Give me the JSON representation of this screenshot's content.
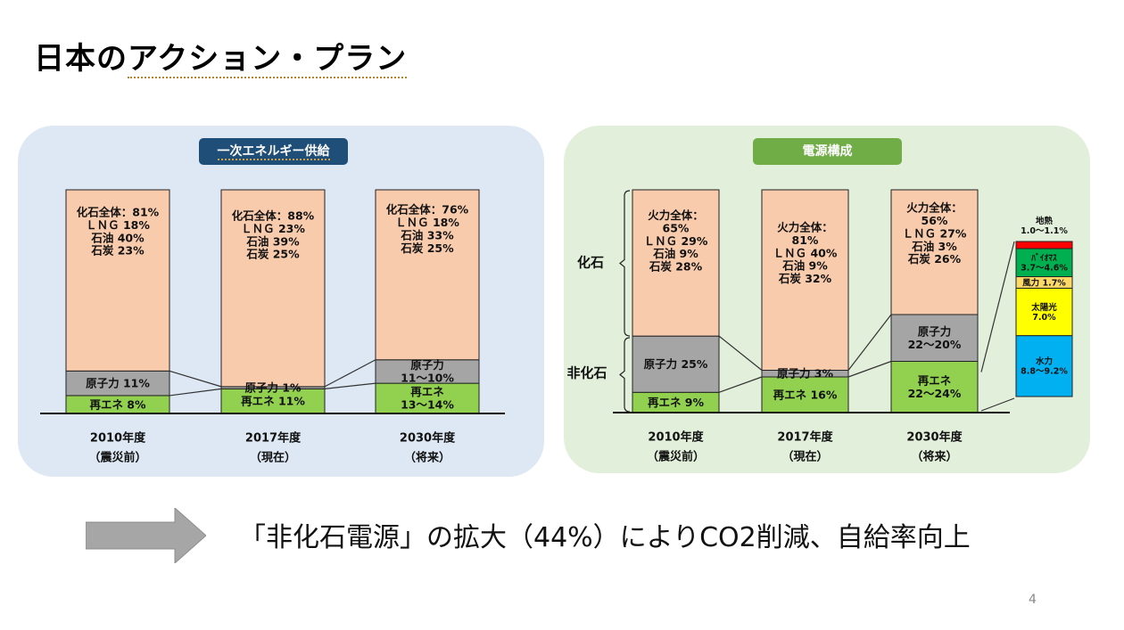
{
  "slide": {
    "title_prefix": "日本の",
    "title_underlined": "アクション・プラン",
    "page_number": "4",
    "bottom_message": "「非化石電源」の拡大（44%）によりCO2削減、自給率向上"
  },
  "colors": {
    "fossil": "#f8cbad",
    "nuclear": "#a5a5a5",
    "renewable": "#92d050",
    "geothermal": "#ff0000",
    "biomass": "#00b050",
    "wind": "#ffd966",
    "solar": "#ffff00",
    "hydro": "#00b0f0",
    "primary_badge": "#1f4e79",
    "power_badge": "#70ad47"
  },
  "chart_data": [
    {
      "type": "bar",
      "stacked": true,
      "title": "一次エネルギー供給",
      "categories": [
        "2010年度",
        "2017年度",
        "2030年度"
      ],
      "category_sublabels": [
        "（震災前）",
        "（現在）",
        "（将来）"
      ],
      "series": [
        {
          "name": "再エネ",
          "values": [
            8,
            11,
            13.5
          ],
          "labels": [
            "再エネ  8%",
            "再エネ  11%",
            "再エネ\n13～14%"
          ]
        },
        {
          "name": "原子力",
          "values": [
            11,
            1,
            10.5
          ],
          "labels": [
            "原子力  11%",
            "原子力  1%",
            "原子力\n11～10%"
          ]
        },
        {
          "name": "化石全体",
          "values": [
            81,
            88,
            76
          ],
          "labels": [
            "化石全体：81%\nＬＮＧ 18%\n石油  40%\n石炭  23%",
            "化石全体：88%\nＬＮＧ 23%\n石油  39%\n石炭  25%",
            "化石全体：76%\nＬＮＧ 18%\n石油  33%\n石炭  25%"
          ]
        }
      ],
      "ylim": [
        0,
        100
      ]
    },
    {
      "type": "bar",
      "stacked": true,
      "title": "電源構成",
      "categories": [
        "2010年度",
        "2017年度",
        "2030年度"
      ],
      "category_sublabels": [
        "（震災前）",
        "（現在）",
        "（将来）"
      ],
      "group_labels": [
        "化石",
        "非化石"
      ],
      "series": [
        {
          "name": "再エネ",
          "values": [
            9,
            16,
            23
          ],
          "labels": [
            "再エネ  9%",
            "再エネ  16%",
            "再エネ\n22～24%"
          ]
        },
        {
          "name": "原子力",
          "values": [
            25,
            3,
            21
          ],
          "labels": [
            "原子力  25%",
            "原子力  3%",
            "原子力\n22～20%"
          ]
        },
        {
          "name": "火力全体",
          "values": [
            65,
            81,
            56
          ],
          "labels": [
            "火力全体：\n65%\nＬＮＧ  29%\n石油   9%\n石炭  28%",
            "火力全体：\n81%\nＬＮＧ  40%\n石油   9%\n石炭  32%",
            "火力全体：\n56%\nＬＮＧ  27%\n石油    3%\n石炭  26%"
          ]
        }
      ],
      "renewable_breakdown_2030": [
        {
          "name": "水力",
          "range": "8.8～9.2%",
          "value": 9.0,
          "color_key": "hydro"
        },
        {
          "name": "太陽光",
          "range": "7.0%",
          "value": 7.0,
          "color_key": "solar"
        },
        {
          "name": "風力",
          "range": "1.7%",
          "value": 1.7,
          "color_key": "wind"
        },
        {
          "name": "ﾊﾞｲｵﾏｽ",
          "range": "3.7～4.6%",
          "value": 4.15,
          "color_key": "biomass"
        },
        {
          "name": "地熱",
          "range": "1.0～1.1%",
          "value": 1.05,
          "color_key": "geothermal"
        }
      ],
      "ylim": [
        0,
        100
      ]
    }
  ]
}
